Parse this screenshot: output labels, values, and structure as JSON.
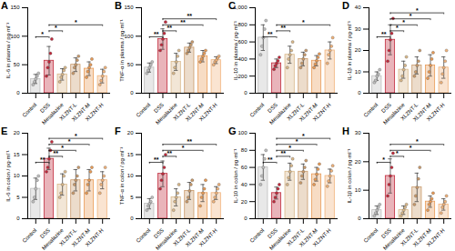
{
  "chart_data": [
    {
      "type": "bar",
      "title": "A",
      "ylabel": "IL-6 in plasma / pg·ml⁻¹",
      "categories": [
        "Control",
        "DSS",
        "Mesalazine",
        "XLZNT-L",
        "XLZNT-M",
        "XLZNT-H"
      ],
      "values": [
        25,
        57,
        33,
        50,
        43,
        30
      ],
      "errors": [
        8,
        25,
        10,
        12,
        12,
        12
      ],
      "points": [
        [
          15,
          20,
          25,
          30,
          35
        ],
        [
          30,
          45,
          55,
          70,
          95
        ],
        [
          20,
          28,
          33,
          40,
          45
        ],
        [
          35,
          45,
          50,
          58,
          65
        ],
        [
          28,
          38,
          45,
          50,
          60
        ],
        [
          15,
          22,
          30,
          38,
          45
        ]
      ],
      "colors": [
        "#bdbdbd",
        "#c0283a",
        "#d9b88a",
        "#c99a6b",
        "#e89a55",
        "#f0b27a"
      ],
      "ylim": [
        0,
        150
      ],
      "yticks": [
        0,
        50,
        100,
        150
      ],
      "annotations": [
        {
          "from": "Control",
          "to": "DSS",
          "text": "*"
        },
        {
          "from": "DSS",
          "to": "Mesalazine",
          "text": "*"
        },
        {
          "from": "DSS",
          "to": "XLZNT-H",
          "text": "*"
        }
      ]
    },
    {
      "type": "bar",
      "title": "B",
      "ylabel": "TNF-α in plasma / pg·ml⁻¹",
      "categories": [
        "Control",
        "DSS",
        "Mesalazine",
        "XLZNT-L",
        "XLZNT-M",
        "XLZNT-H"
      ],
      "values": [
        45,
        95,
        55,
        80,
        65,
        58
      ],
      "errors": [
        8,
        18,
        15,
        8,
        10,
        6
      ],
      "points": [
        [
          35,
          40,
          45,
          50,
          55
        ],
        [
          75,
          85,
          95,
          105,
          125
        ],
        [
          35,
          45,
          55,
          65,
          75
        ],
        [
          70,
          75,
          80,
          85,
          90
        ],
        [
          55,
          60,
          65,
          70,
          75
        ],
        [
          50,
          55,
          58,
          62,
          65
        ]
      ],
      "colors": [
        "#bdbdbd",
        "#c0283a",
        "#d9b88a",
        "#c99a6b",
        "#e89a55",
        "#f0b27a"
      ],
      "ylim": [
        0,
        150
      ],
      "yticks": [
        0,
        50,
        100,
        150
      ],
      "annotations": [
        {
          "from": "Control",
          "to": "DSS",
          "text": "**"
        },
        {
          "from": "DSS",
          "to": "Mesalazine",
          "text": "**"
        },
        {
          "from": "DSS",
          "to": "XLZNT-M",
          "text": "**"
        },
        {
          "from": "DSS",
          "to": "XLZNT-H",
          "text": "**"
        }
      ]
    },
    {
      "type": "bar",
      "title": "C",
      "ylabel": "IL-10 in plasma / pg·ml⁻¹",
      "categories": [
        "Control",
        "DSS",
        "Mesalazine",
        "XLZNT-L",
        "XLZNT-M",
        "XLZNT-H"
      ],
      "values": [
        650,
        350,
        450,
        400,
        380,
        500
      ],
      "errors": [
        150,
        50,
        100,
        80,
        60,
        100
      ],
      "points": [
        [
          450,
          550,
          650,
          750,
          850
        ],
        [
          280,
          320,
          350,
          380,
          420
        ],
        [
          300,
          400,
          450,
          500,
          600
        ],
        [
          300,
          350,
          400,
          450,
          500
        ],
        [
          300,
          340,
          380,
          420,
          460
        ],
        [
          350,
          450,
          500,
          550,
          650
        ]
      ],
      "colors": [
        "#bdbdbd",
        "#c0283a",
        "#d9b88a",
        "#c99a6b",
        "#e89a55",
        "#f0b27a"
      ],
      "ylim": [
        0,
        1000
      ],
      "yticks": [
        0,
        200,
        400,
        600,
        800,
        1000
      ],
      "annotations": [
        {
          "from": "Control",
          "to": "DSS",
          "text": "**"
        },
        {
          "from": "DSS",
          "to": "Mesalazine",
          "text": "**"
        },
        {
          "from": "DSS",
          "to": "XLZNT-H",
          "text": "*"
        }
      ]
    },
    {
      "type": "bar",
      "title": "D",
      "ylabel": "IL-1β in plasma / pg·ml⁻¹",
      "categories": [
        "Control",
        "DSS",
        "Mesalazine",
        "XLZNT-L",
        "XLZNT-M",
        "XLZNT-H"
      ],
      "values": [
        8,
        25,
        11,
        13,
        13,
        12
      ],
      "errors": [
        2,
        7,
        4,
        4,
        5,
        5
      ],
      "points": [
        [
          5,
          6,
          8,
          9,
          11
        ],
        [
          15,
          20,
          25,
          28,
          35
        ],
        [
          6,
          8,
          11,
          13,
          17
        ],
        [
          8,
          10,
          13,
          15,
          20
        ],
        [
          7,
          10,
          13,
          16,
          19
        ],
        [
          5,
          9,
          12,
          15,
          20
        ]
      ],
      "colors": [
        "#bdbdbd",
        "#c0283a",
        "#d9b88a",
        "#c99a6b",
        "#e89a55",
        "#f0b27a"
      ],
      "ylim": [
        0,
        40
      ],
      "yticks": [
        0,
        10,
        20,
        30,
        40
      ],
      "annotations": [
        {
          "from": "Control",
          "to": "DSS",
          "text": "**"
        },
        {
          "from": "DSS",
          "to": "Mesalazine",
          "text": "*"
        },
        {
          "from": "DSS",
          "to": "XLZNT-L",
          "text": "*"
        },
        {
          "from": "DSS",
          "to": "XLZNT-M",
          "text": "*"
        },
        {
          "from": "DSS",
          "to": "XLZNT-H",
          "text": "*"
        }
      ]
    },
    {
      "type": "bar",
      "title": "E",
      "ylabel": "IL-6 in colon / pg·ml⁻¹",
      "categories": [
        "Control",
        "DSS",
        "Mesalazine",
        "XLZNT-L",
        "XLZNT-M",
        "XLZNT-H"
      ],
      "values": [
        7,
        14,
        8,
        9,
        9,
        9
      ],
      "errors": [
        2.5,
        2.5,
        2.5,
        2.5,
        2.5,
        2
      ],
      "points": [
        [
          4,
          5,
          7,
          9,
          10
        ],
        [
          11,
          12,
          14,
          16,
          18
        ],
        [
          5,
          6,
          8,
          10,
          11
        ],
        [
          6,
          8,
          9,
          10,
          12
        ],
        [
          6,
          8,
          9,
          11,
          12
        ],
        [
          6,
          8,
          9,
          10,
          12
        ]
      ],
      "colors": [
        "#bdbdbd",
        "#c0283a",
        "#d9b88a",
        "#c99a6b",
        "#e89a55",
        "#f0b27a"
      ],
      "ylim": [
        0,
        20
      ],
      "yticks": [
        0,
        5,
        10,
        15,
        20
      ],
      "annotations": [
        {
          "from": "Control",
          "to": "DSS",
          "text": "**"
        },
        {
          "from": "DSS",
          "to": "Mesalazine",
          "text": "**"
        },
        {
          "from": "DSS",
          "to": "XLZNT-L",
          "text": "*"
        },
        {
          "from": "DSS",
          "to": "XLZNT-M",
          "text": "*"
        },
        {
          "from": "DSS",
          "to": "XLZNT-H",
          "text": "*"
        }
      ]
    },
    {
      "type": "bar",
      "title": "F",
      "ylabel": "TNF-α in colon / pg·ml⁻¹",
      "categories": [
        "Control",
        "DSS",
        "Mesalazine",
        "XLZNT-L",
        "XLZNT-M",
        "XLZNT-H"
      ],
      "values": [
        3.5,
        10.5,
        5,
        6.5,
        6,
        6
      ],
      "errors": [
        1.2,
        3,
        2,
        2,
        2,
        1.5
      ],
      "points": [
        [
          2,
          3,
          3.5,
          4,
          5
        ],
        [
          7,
          9,
          10.5,
          12,
          15
        ],
        [
          2,
          4,
          5,
          6,
          8
        ],
        [
          4,
          5,
          6.5,
          8,
          9
        ],
        [
          3,
          5,
          6,
          7,
          9
        ],
        [
          4,
          5,
          6,
          7,
          8
        ]
      ],
      "colors": [
        "#bdbdbd",
        "#c0283a",
        "#d9b88a",
        "#c99a6b",
        "#e89a55",
        "#f0b27a"
      ],
      "ylim": [
        0,
        20
      ],
      "yticks": [
        0,
        5,
        10,
        15,
        20
      ],
      "annotations": [
        {
          "from": "Control",
          "to": "DSS",
          "text": "**"
        },
        {
          "from": "DSS",
          "to": "Mesalazine",
          "text": "**"
        },
        {
          "from": "DSS",
          "to": "XLZNT-M",
          "text": "*"
        },
        {
          "from": "DSS",
          "to": "XLZNT-H",
          "text": "**"
        }
      ]
    },
    {
      "type": "bar",
      "title": "G",
      "ylabel": "IL-10 in colon / pg·ml⁻¹",
      "categories": [
        "Control",
        "DSS",
        "Mesalazine",
        "XLZNT-L",
        "XLZNT-M",
        "XLZNT-H"
      ],
      "values": [
        60,
        30,
        55,
        55,
        52,
        50
      ],
      "errors": [
        15,
        7,
        10,
        9,
        8,
        8
      ],
      "points": [
        [
          40,
          50,
          60,
          70,
          80
        ],
        [
          20,
          25,
          30,
          35,
          40
        ],
        [
          40,
          48,
          55,
          62,
          70
        ],
        [
          42,
          50,
          55,
          60,
          68
        ],
        [
          40,
          46,
          52,
          58,
          64
        ],
        [
          38,
          44,
          50,
          56,
          62
        ]
      ],
      "colors": [
        "#bdbdbd",
        "#c0283a",
        "#d9b88a",
        "#c99a6b",
        "#e89a55",
        "#f0b27a"
      ],
      "ylim": [
        0,
        100
      ],
      "yticks": [
        0,
        20,
        40,
        60,
        80,
        100
      ],
      "annotations": [
        {
          "from": "Control",
          "to": "DSS",
          "text": "**"
        },
        {
          "from": "DSS",
          "to": "Mesalazine",
          "text": "**"
        },
        {
          "from": "DSS",
          "to": "XLZNT-L",
          "text": "*"
        },
        {
          "from": "DSS",
          "to": "XLZNT-M",
          "text": "*"
        },
        {
          "from": "DSS",
          "to": "XLZNT-H",
          "text": "*"
        }
      ]
    },
    {
      "type": "bar",
      "title": "H",
      "ylabel": "IL-1β in colon / pg·ml⁻¹",
      "categories": [
        "Control",
        "DSS",
        "Mesalazine",
        "XLZNT-L",
        "XLZNT-M",
        "XLZNT-H"
      ],
      "values": [
        3,
        15,
        3,
        11,
        6,
        5
      ],
      "errors": [
        1.5,
        6,
        1.5,
        5,
        2,
        2
      ],
      "points": [
        [
          1,
          2,
          3,
          4,
          5
        ],
        [
          8,
          12,
          15,
          18,
          23
        ],
        [
          1,
          2,
          3,
          4,
          5
        ],
        [
          5,
          8,
          11,
          14,
          18
        ],
        [
          3,
          5,
          6,
          7,
          9
        ],
        [
          2,
          4,
          5,
          6,
          8
        ]
      ],
      "colors": [
        "#bdbdbd",
        "#c0283a",
        "#d9b88a",
        "#c99a6b",
        "#e89a55",
        "#f0b27a"
      ],
      "ylim": [
        0,
        30
      ],
      "yticks": [
        0,
        10,
        20,
        30
      ],
      "annotations": [
        {
          "from": "Control",
          "to": "DSS",
          "text": "*"
        },
        {
          "from": "DSS",
          "to": "Mesalazine",
          "text": "*"
        },
        {
          "from": "DSS",
          "to": "XLZNT-M",
          "text": "*"
        },
        {
          "from": "DSS",
          "to": "XLZNT-H",
          "text": "*"
        }
      ]
    }
  ]
}
